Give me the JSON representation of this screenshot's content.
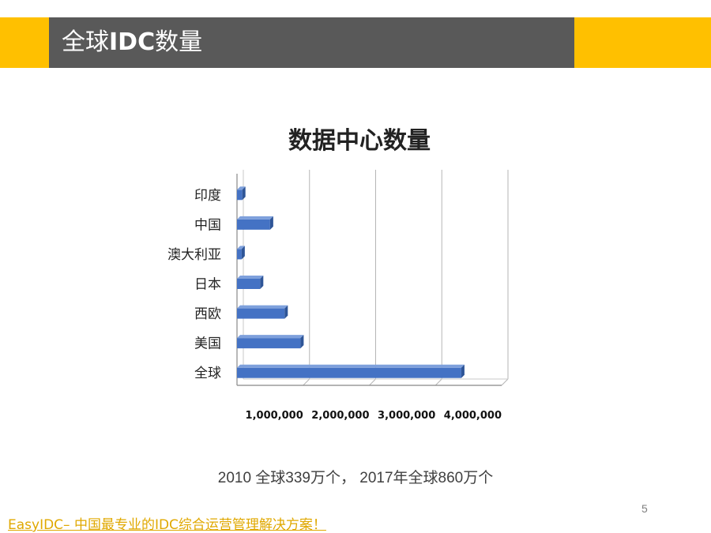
{
  "header": {
    "title_part1": "全球",
    "title_part2": "IDC",
    "title_part3": "数量"
  },
  "chart_data": {
    "type": "bar",
    "orientation": "horizontal",
    "title": "数据中心数量",
    "categories": [
      "印度",
      "中国",
      "澳大利亚",
      "日本",
      "西欧",
      "美国",
      "全球"
    ],
    "values": [
      80000,
      500000,
      70000,
      350000,
      720000,
      960000,
      3390000
    ],
    "xlim": [
      0,
      4000000
    ],
    "xticks": [
      1000000,
      2000000,
      3000000,
      4000000
    ],
    "xtick_labels": [
      "1,000,000",
      "2,000,000",
      "3,000,000",
      "4,000,000"
    ],
    "bar_color": "#4472C4",
    "grid": true
  },
  "summary": "2010 全球339万个， 2017年全球860万个",
  "page_number": "5",
  "footer": {
    "link_text": "EasyIDC– 中国最专业的IDC综合运营管理解决方案！"
  }
}
